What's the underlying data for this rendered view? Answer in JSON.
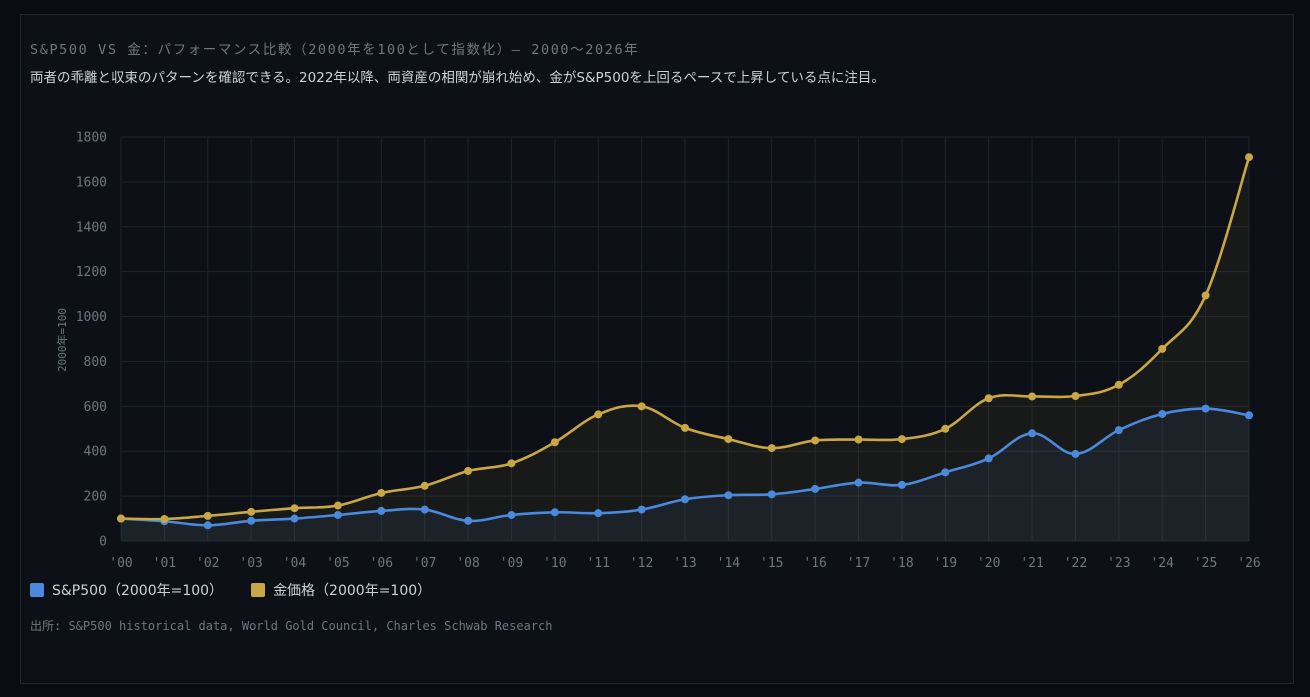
{
  "header": {
    "title": "S&P500 VS 金：パフォーマンス比較（2000年を100として指数化）— 2000〜2026年",
    "subtitle": "両者の乖離と収束のパターンを確認できる。2022年以降、両資産の相関が崩れ始め、金がS&P500を上回るペースで上昇している点に注目。"
  },
  "footer": {
    "source": "出所: S&P500 historical data, World Gold Council, Charles Schwab Research"
  },
  "colors": {
    "sp500": "#4a89dc",
    "gold": "#c9a646",
    "grid": "#1f242c",
    "background": "#0d1117"
  },
  "chart_data": {
    "type": "line",
    "title": "S&P500 VS 金：パフォーマンス比較（2000年を100として指数化）— 2000〜2026年",
    "xlabel": "",
    "ylabel": "2000年=100",
    "categories": [
      "'00",
      "'01",
      "'02",
      "'03",
      "'04",
      "'05",
      "'06",
      "'07",
      "'08",
      "'09",
      "'10",
      "'11",
      "'12",
      "'13",
      "'14",
      "'15",
      "'16",
      "'17",
      "'18",
      "'19",
      "'20",
      "'21",
      "'22",
      "'23",
      "'24",
      "'25",
      "'26"
    ],
    "ylim": [
      0,
      1800
    ],
    "yticks": [
      0,
      200,
      400,
      600,
      800,
      1000,
      1200,
      1400,
      1600,
      1800
    ],
    "grid": true,
    "legend_position": "bottom-left",
    "series": [
      {
        "name": "S&P500（2000年=100）",
        "color": "#4a89dc",
        "values": [
          100,
          88,
          70,
          90,
          100,
          116,
          134,
          140,
          90,
          116,
          128,
          124,
          140,
          186,
          204,
          208,
          232,
          260,
          250,
          306,
          368,
          480,
          388,
          494,
          566,
          590,
          560
        ]
      },
      {
        "name": "金価格（2000年=100）",
        "color": "#c9a646",
        "values": [
          100,
          98,
          112,
          130,
          146,
          158,
          214,
          246,
          312,
          346,
          440,
          564,
          600,
          504,
          454,
          414,
          448,
          452,
          454,
          500,
          636,
          644,
          646,
          696,
          856,
          1094,
          1710
        ]
      }
    ]
  }
}
